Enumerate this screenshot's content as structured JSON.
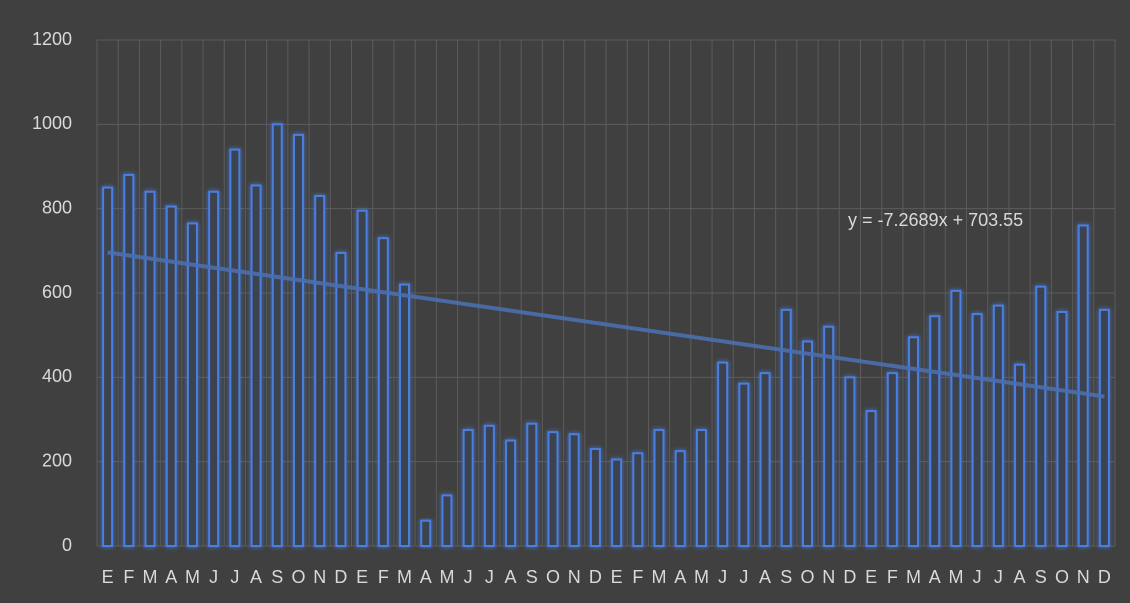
{
  "chart_data": {
    "type": "bar",
    "categories": [
      "E",
      "F",
      "M",
      "A",
      "M",
      "J",
      "J",
      "A",
      "S",
      "O",
      "N",
      "D",
      "E",
      "F",
      "M",
      "A",
      "M",
      "J",
      "J",
      "A",
      "S",
      "O",
      "N",
      "D",
      "E",
      "F",
      "M",
      "A",
      "M",
      "J",
      "J",
      "A",
      "S",
      "O",
      "N",
      "D",
      "E",
      "F",
      "M",
      "A",
      "M",
      "J",
      "J",
      "A",
      "S",
      "O",
      "N",
      "D"
    ],
    "values": [
      850,
      880,
      840,
      805,
      765,
      840,
      940,
      855,
      1000,
      975,
      830,
      695,
      795,
      730,
      620,
      60,
      120,
      275,
      285,
      250,
      290,
      270,
      265,
      230,
      205,
      220,
      275,
      225,
      275,
      435,
      385,
      410,
      560,
      485,
      520,
      400,
      320,
      410,
      495,
      545,
      605,
      550,
      570,
      430,
      615,
      555,
      760,
      560
    ],
    "color": "#4a7fe0",
    "ylim": [
      0,
      1200
    ],
    "yticks": [
      0,
      200,
      400,
      600,
      800,
      1000,
      1200
    ],
    "grid": true,
    "trendline": {
      "slope": -7.2689,
      "intercept": 703.55,
      "label": "y = -7.2689x + 703.55",
      "color": "#4a6fae"
    }
  }
}
